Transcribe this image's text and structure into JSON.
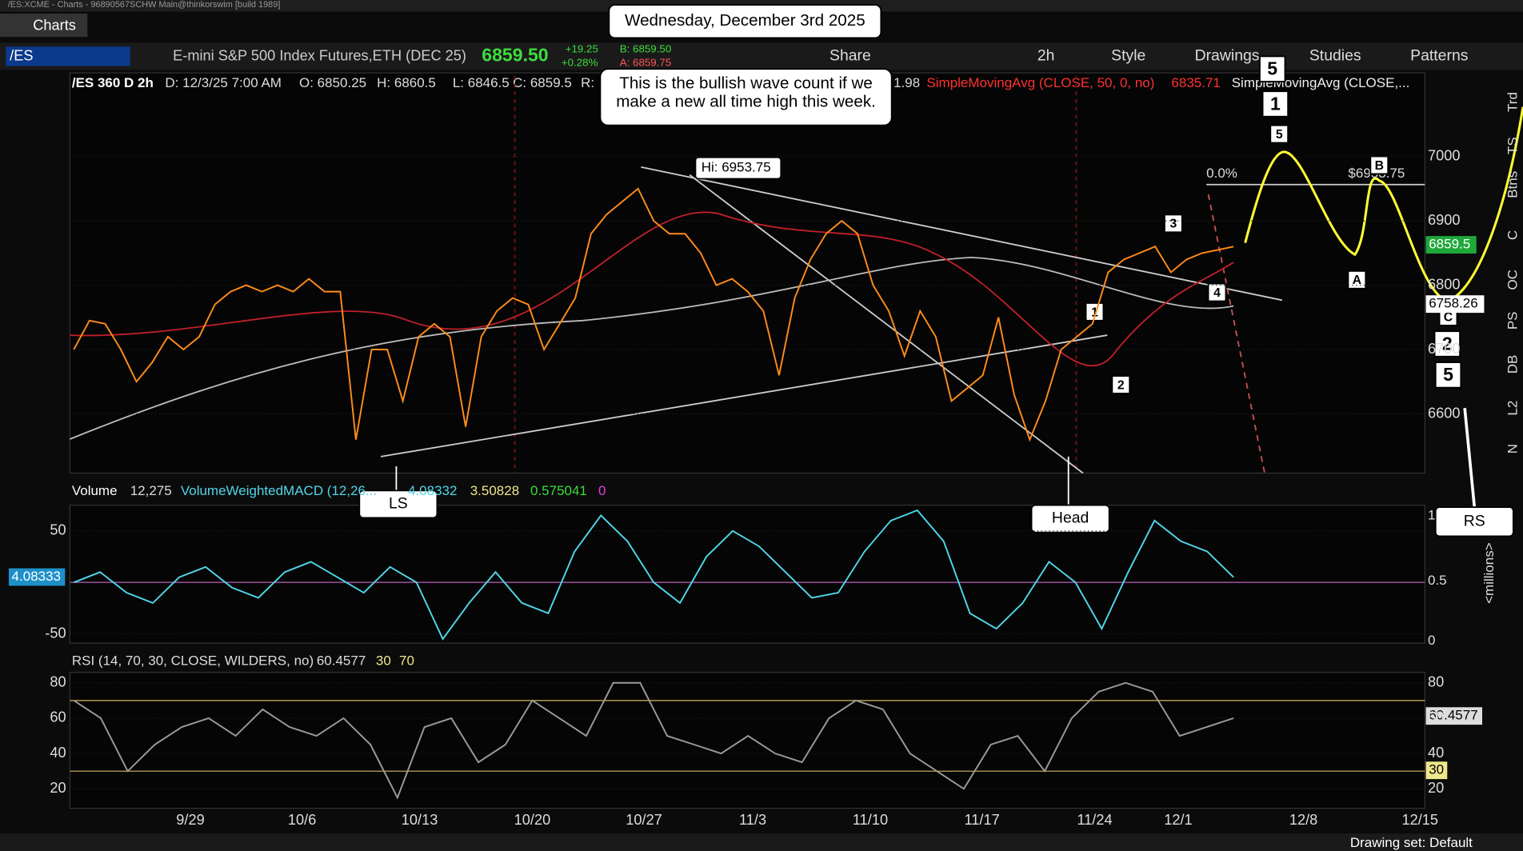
{
  "window": {
    "title": "/ES:XCME - Charts - 96890567SCHW Main@thinkorswim [build 1989]",
    "tab": "Charts"
  },
  "toolbar": {
    "symbol": "/ES",
    "description": "E-mini S&P 500 Index Futures,ETH (DEC 25)",
    "last": "6859.50",
    "change": "+19.25",
    "change_pct": "+0.28%",
    "bid": "B: 6859.50",
    "ask": "A: 6859.75",
    "buttons": [
      "Share",
      "2h",
      "Style",
      "Drawings",
      "Studies",
      "Patterns"
    ]
  },
  "chart_header": {
    "name": "/ES 360 D 2h",
    "ohlc": [
      "D: 12/3/25 7:00 AM",
      "O: 6850.25",
      "H: 6860.5",
      "L: 6846.5",
      "C: 6859.5",
      "R:"
    ],
    "studies": [
      "1.98",
      "SimpleMovingAvg (CLOSE, 50, 0, no)",
      "6835.71",
      "SimpleMovingAvg (CLOSE,..."
    ]
  },
  "annotations": {
    "date": "Wednesday, December 3rd 2025",
    "note": "This is the bullish wave count if we make a new all time high this week.",
    "high": "Hi: 6953.75",
    "fib": "0.0%",
    "fib_price": "$6953.75",
    "ls": "LS",
    "head": "Head",
    "rs": "RS",
    "waves": [
      "1",
      "2",
      "3",
      "4",
      "5",
      "1",
      "5",
      "2",
      "5",
      "A",
      "B",
      "C"
    ],
    "last_tag": "6859.5",
    "low_tag": "6758.26"
  },
  "volume_header": [
    "Volume",
    "12,275",
    "VolumeWeightedMACD (12,26...",
    "4.08332",
    "3.50828",
    "0.575041",
    "0"
  ],
  "macd_tag": "4.08333",
  "macd_right_ticks": [
    "1",
    "0.5",
    "0"
  ],
  "macd_unit": "<millions>",
  "rsi_header": [
    "RSI (14, 70, 30, CLOSE, WILDERS, no)",
    "60.4577",
    "30",
    "70"
  ],
  "rsi_tags": [
    "60.4577",
    "30"
  ],
  "sidebar": [
    "Trd",
    "TS",
    "Btns",
    "C",
    "OC",
    "PS",
    "DB",
    "L2",
    "N"
  ],
  "status": "Drawing set: Default",
  "chart_data": [
    {
      "type": "line",
      "categories": [
        null,
        null,
        null,
        null,
        null,
        null,
        null,
        null,
        null,
        null,
        null,
        null,
        null,
        null,
        null,
        null,
        null,
        null,
        null,
        null,
        null,
        null,
        null,
        null,
        null,
        null,
        null,
        null,
        null,
        null,
        null,
        null,
        null,
        null,
        null,
        null,
        null,
        null,
        null,
        null,
        null,
        null,
        null,
        null,
        null,
        null,
        null,
        null,
        null,
        null,
        null,
        null,
        null,
        null,
        null,
        null,
        null,
        null,
        null,
        null,
        null,
        null,
        null,
        null,
        null,
        null,
        null,
        null,
        null,
        null,
        null,
        null,
        null,
        null,
        null
      ],
      "values": [
        6700,
        6745,
        6740,
        6700,
        6650,
        6680,
        6720,
        6700,
        6720,
        6770,
        6790,
        6800,
        6790,
        6800,
        6790,
        6810,
        6790,
        6790,
        6560,
        6700,
        6700,
        6620,
        6720,
        6740,
        6720,
        6580,
        6720,
        6760,
        6780,
        6770,
        6700,
        6740,
        6780,
        6880,
        6910,
        6930,
        6950,
        6900,
        6880,
        6880,
        6850,
        6800,
        6810,
        6790,
        6760,
        6660,
        6780,
        6840,
        6880,
        6900,
        6880,
        6800,
        6760,
        6690,
        6760,
        6720,
        6620,
        6640,
        6660,
        6750,
        6630,
        6560,
        6620,
        6700,
        6720,
        6740,
        6820,
        6840,
        6850,
        6860,
        6820,
        6840,
        6850,
        6855,
        6860
      ],
      "color": "#ff8c1a",
      "ylim": [
        6508,
        7130
      ],
      "yticks": [
        6600,
        6700,
        6800,
        6900,
        7000
      ],
      "x_labels": [
        "9/29",
        "10/6",
        "10/13",
        "10/20",
        "10/27",
        "11/3",
        "11/10",
        "11/17",
        "11/24",
        "12/1",
        "12/8",
        "12/15"
      ]
    },
    {
      "type": "line",
      "categories": [
        null,
        null,
        null,
        null,
        null,
        null,
        null,
        null,
        null,
        null,
        null,
        null,
        null,
        null,
        null,
        null,
        null,
        null,
        null,
        null,
        null,
        null,
        null,
        null,
        null,
        null,
        null,
        null,
        null,
        null,
        null,
        null,
        null,
        null,
        null,
        null,
        null,
        null,
        null,
        null,
        null,
        null,
        null,
        null,
        null
      ],
      "values": [
        0,
        10,
        -10,
        -20,
        5,
        15,
        -5,
        -15,
        10,
        20,
        5,
        -10,
        15,
        0,
        -55,
        -20,
        10,
        -20,
        -30,
        30,
        65,
        40,
        0,
        -20,
        25,
        50,
        35,
        10,
        -15,
        -10,
        30,
        60,
        70,
        40,
        -30,
        -45,
        -20,
        20,
        0,
        -45,
        10,
        60,
        40,
        30,
        5
      ],
      "color": "#4fd6e8",
      "ylim": [
        -59,
        75
      ],
      "yticks": [
        -50,
        50
      ]
    },
    {
      "type": "line",
      "categories": [
        null,
        null,
        null,
        null,
        null,
        null,
        null,
        null,
        null,
        null,
        null,
        null,
        null,
        null,
        null,
        null,
        null,
        null,
        null,
        null,
        null,
        null,
        null,
        null,
        null,
        null,
        null,
        null,
        null,
        null,
        null,
        null,
        null,
        null,
        null,
        null,
        null,
        null,
        null,
        null,
        null,
        null,
        null,
        null
      ],
      "values": [
        70,
        60,
        30,
        45,
        55,
        60,
        50,
        65,
        55,
        50,
        60,
        45,
        15,
        55,
        60,
        35,
        45,
        70,
        60,
        50,
        80,
        80,
        50,
        45,
        40,
        50,
        40,
        35,
        60,
        70,
        65,
        40,
        30,
        20,
        45,
        50,
        30,
        60,
        75,
        80,
        75,
        50,
        55,
        60
      ],
      "color": "#9a9a9a",
      "ylim": [
        9,
        86
      ],
      "yticks": [
        20,
        40,
        60,
        80
      ],
      "levels": [
        30,
        70
      ]
    }
  ]
}
